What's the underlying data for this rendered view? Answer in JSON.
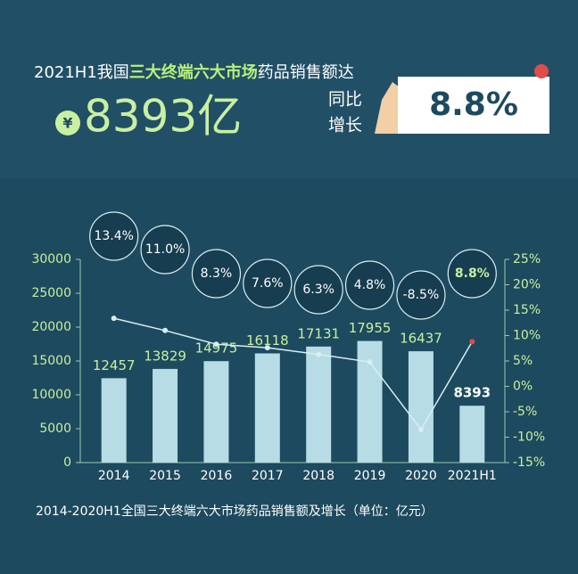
{
  "header": {
    "title_parts": [
      "2021H1我国",
      "三大终端六大市场",
      "药品销售额达"
    ],
    "currency": "¥",
    "amount": "8393亿",
    "growth_label": [
      "同比",
      "增长"
    ],
    "growth": "8.8%"
  },
  "chart_data": {
    "type": "bar_line",
    "categories": [
      "2014",
      "2015",
      "2016",
      "2017",
      "2018",
      "2019",
      "2020",
      "2021H1"
    ],
    "series": [
      {
        "name": "销售额",
        "type": "bar",
        "color": "#b7dce6",
        "values": [
          12457,
          13829,
          14975,
          16118,
          17131,
          17955,
          16437,
          8393
        ]
      },
      {
        "name": "增长",
        "type": "line",
        "axis": "y2",
        "color": "#d8eef4",
        "values": [
          13.4,
          11.0,
          8.3,
          7.6,
          6.3,
          4.8,
          -8.5,
          8.8
        ],
        "value_labels": [
          "13.4%",
          "11.0%",
          "8.3%",
          "7.6%",
          "6.3%",
          "4.8%",
          "-8.5%",
          "8.8%"
        ]
      }
    ],
    "ylim": [
      0,
      30000
    ],
    "yticks": [
      0,
      5000,
      10000,
      15000,
      20000,
      25000,
      30000
    ],
    "y2lim": [
      -15,
      25
    ],
    "y2ticks": [
      {
        "value": -15,
        "label": "-15%"
      },
      {
        "value": -10,
        "label": "-10%"
      },
      {
        "value": -5,
        "label": "-5%"
      },
      {
        "value": 0,
        "label": "0%"
      },
      {
        "value": 5,
        "label": "5%"
      },
      {
        "value": 10,
        "label": "10%"
      },
      {
        "value": 15,
        "label": "15%"
      },
      {
        "value": 20,
        "label": "20%"
      },
      {
        "value": 25,
        "label": "25%"
      }
    ],
    "caption": "2014-2020H1全国三大终端六大市场药品销售额及增长（单位：亿元）"
  }
}
